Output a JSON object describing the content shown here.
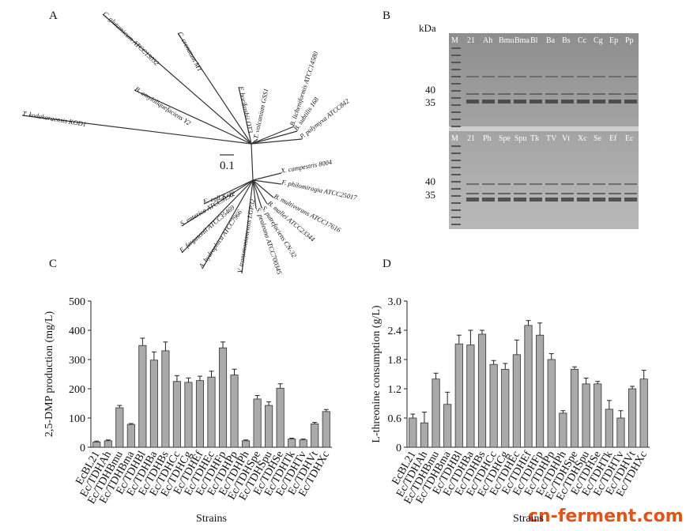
{
  "panel_labels": [
    "A",
    "B",
    "C",
    "D"
  ],
  "tree": {
    "scale": "0.1",
    "labels": [
      "C. glutamicum ATCC13032",
      "C. crenatum MT",
      "B. amyloliquefaciens Y2",
      "T. kodakaraensis KOD1",
      "F. horikoshii OT3",
      "T. volcanium GSS1",
      "B. licheniformis ATCC14580",
      "B. subtilis 168",
      "P. polymyxa ATCC842",
      "X. campestris 8004",
      "F. philomiragia ATCC25017",
      "B. multivorans ATCC17616",
      "B. mallei ATCC23344",
      "S. putrefaciens CN-32",
      "S. pealeana ATCC700345",
      "V. transmontanensis LGP32",
      "A. hydrophica ATCC7966",
      "E. fergusonii ATCC35469",
      "S. enterica ATCC9150",
      "E. coli K-12"
    ]
  },
  "gel": {
    "unit": "kDa",
    "markers_top": [
      "40",
      "35"
    ],
    "markers_bottom": [
      "40",
      "35"
    ],
    "lanes_top": [
      "M",
      "21",
      "Ah",
      "Bmu",
      "Bma",
      "Bl",
      "Ba",
      "Bs",
      "Cc",
      "Cg",
      "Ep",
      "Pp"
    ],
    "lanes_bottom": [
      "M",
      "21",
      "Ph",
      "Spe",
      "Spu",
      "Tk",
      "TV",
      "Vt",
      "Xc",
      "Se",
      "Ef",
      "Ec"
    ]
  },
  "chart_data": [
    {
      "type": "bar",
      "ylabel": "2,5-DMP production (mg/L)",
      "xlabel": "Strains",
      "color": "#aaaaaa",
      "categories": [
        "EcBL21",
        "Ec/TDHAh",
        "Ec/TDHBmu",
        "Ec/TDHBma",
        "Ec/TDHBl",
        "Ec/TDHBa",
        "Ec/TDHBs",
        "Ec/TDHCc",
        "Ec/TDHCg",
        "Ec/TDHEf",
        "Ec/TDHEc",
        "Ec/TDHFp",
        "Ec/TDHPp",
        "Ec/TDHPh",
        "Ec/TDHSpe",
        "Ec/TDHSpu",
        "Ec/TDHSe",
        "Ec/TDHTk",
        "Ec/TDHTv",
        "Ec/TDHVt",
        "Ec/TDHXc"
      ],
      "values": [
        18,
        22,
        135,
        78,
        348,
        298,
        330,
        225,
        222,
        228,
        240,
        340,
        247,
        22,
        165,
        143,
        202,
        28,
        25,
        80,
        122
      ],
      "errors": [
        3,
        3,
        8,
        3,
        25,
        28,
        30,
        20,
        15,
        15,
        20,
        20,
        20,
        3,
        12,
        12,
        15,
        3,
        3,
        5,
        7
      ],
      "ylim": [
        0,
        500
      ],
      "yticks": [
        0,
        100,
        200,
        300,
        400,
        500
      ]
    },
    {
      "type": "bar",
      "ylabel": "L-threonine consumption (g/L)",
      "xlabel": "Strains",
      "color": "#aaaaaa",
      "categories": [
        "EcBL21",
        "Ec/TDHAh",
        "Ec/TDHBmu",
        "Ec/TDHBma",
        "Ec/TDHBl",
        "Ec/TDHBa",
        "Ec/TDHBs",
        "Ec/TDHCc",
        "Ec/TDHCg",
        "Ec/TDHEc",
        "Ec/TDHEf",
        "Ec/TDHFp",
        "Ec/TDHPp",
        "Ec/TDHPh",
        "Ec/TDHSpe",
        "Ec/TDHSpu",
        "Ec/TDHSe",
        "Ec/TDHTk",
        "Ec/TDHTv",
        "Ec/TDHVt",
        "Ec/TDHXc"
      ],
      "values": [
        0.6,
        0.5,
        1.4,
        0.88,
        2.12,
        2.1,
        2.32,
        1.7,
        1.6,
        1.9,
        2.5,
        2.3,
        1.8,
        0.7,
        1.6,
        1.3,
        1.3,
        0.78,
        0.6,
        1.2,
        1.4
      ],
      "errors": [
        0.08,
        0.22,
        0.12,
        0.25,
        0.18,
        0.3,
        0.08,
        0.08,
        0.12,
        0.3,
        0.1,
        0.25,
        0.12,
        0.05,
        0.05,
        0.12,
        0.05,
        0.18,
        0.15,
        0.05,
        0.18
      ],
      "ylim": [
        0,
        3
      ],
      "yticks": [
        0,
        0.6,
        1.2,
        1.8,
        2.4,
        {
          "value": 3,
          "label": "3.0"
        }
      ]
    }
  ],
  "watermark": "cn-ferment.com"
}
